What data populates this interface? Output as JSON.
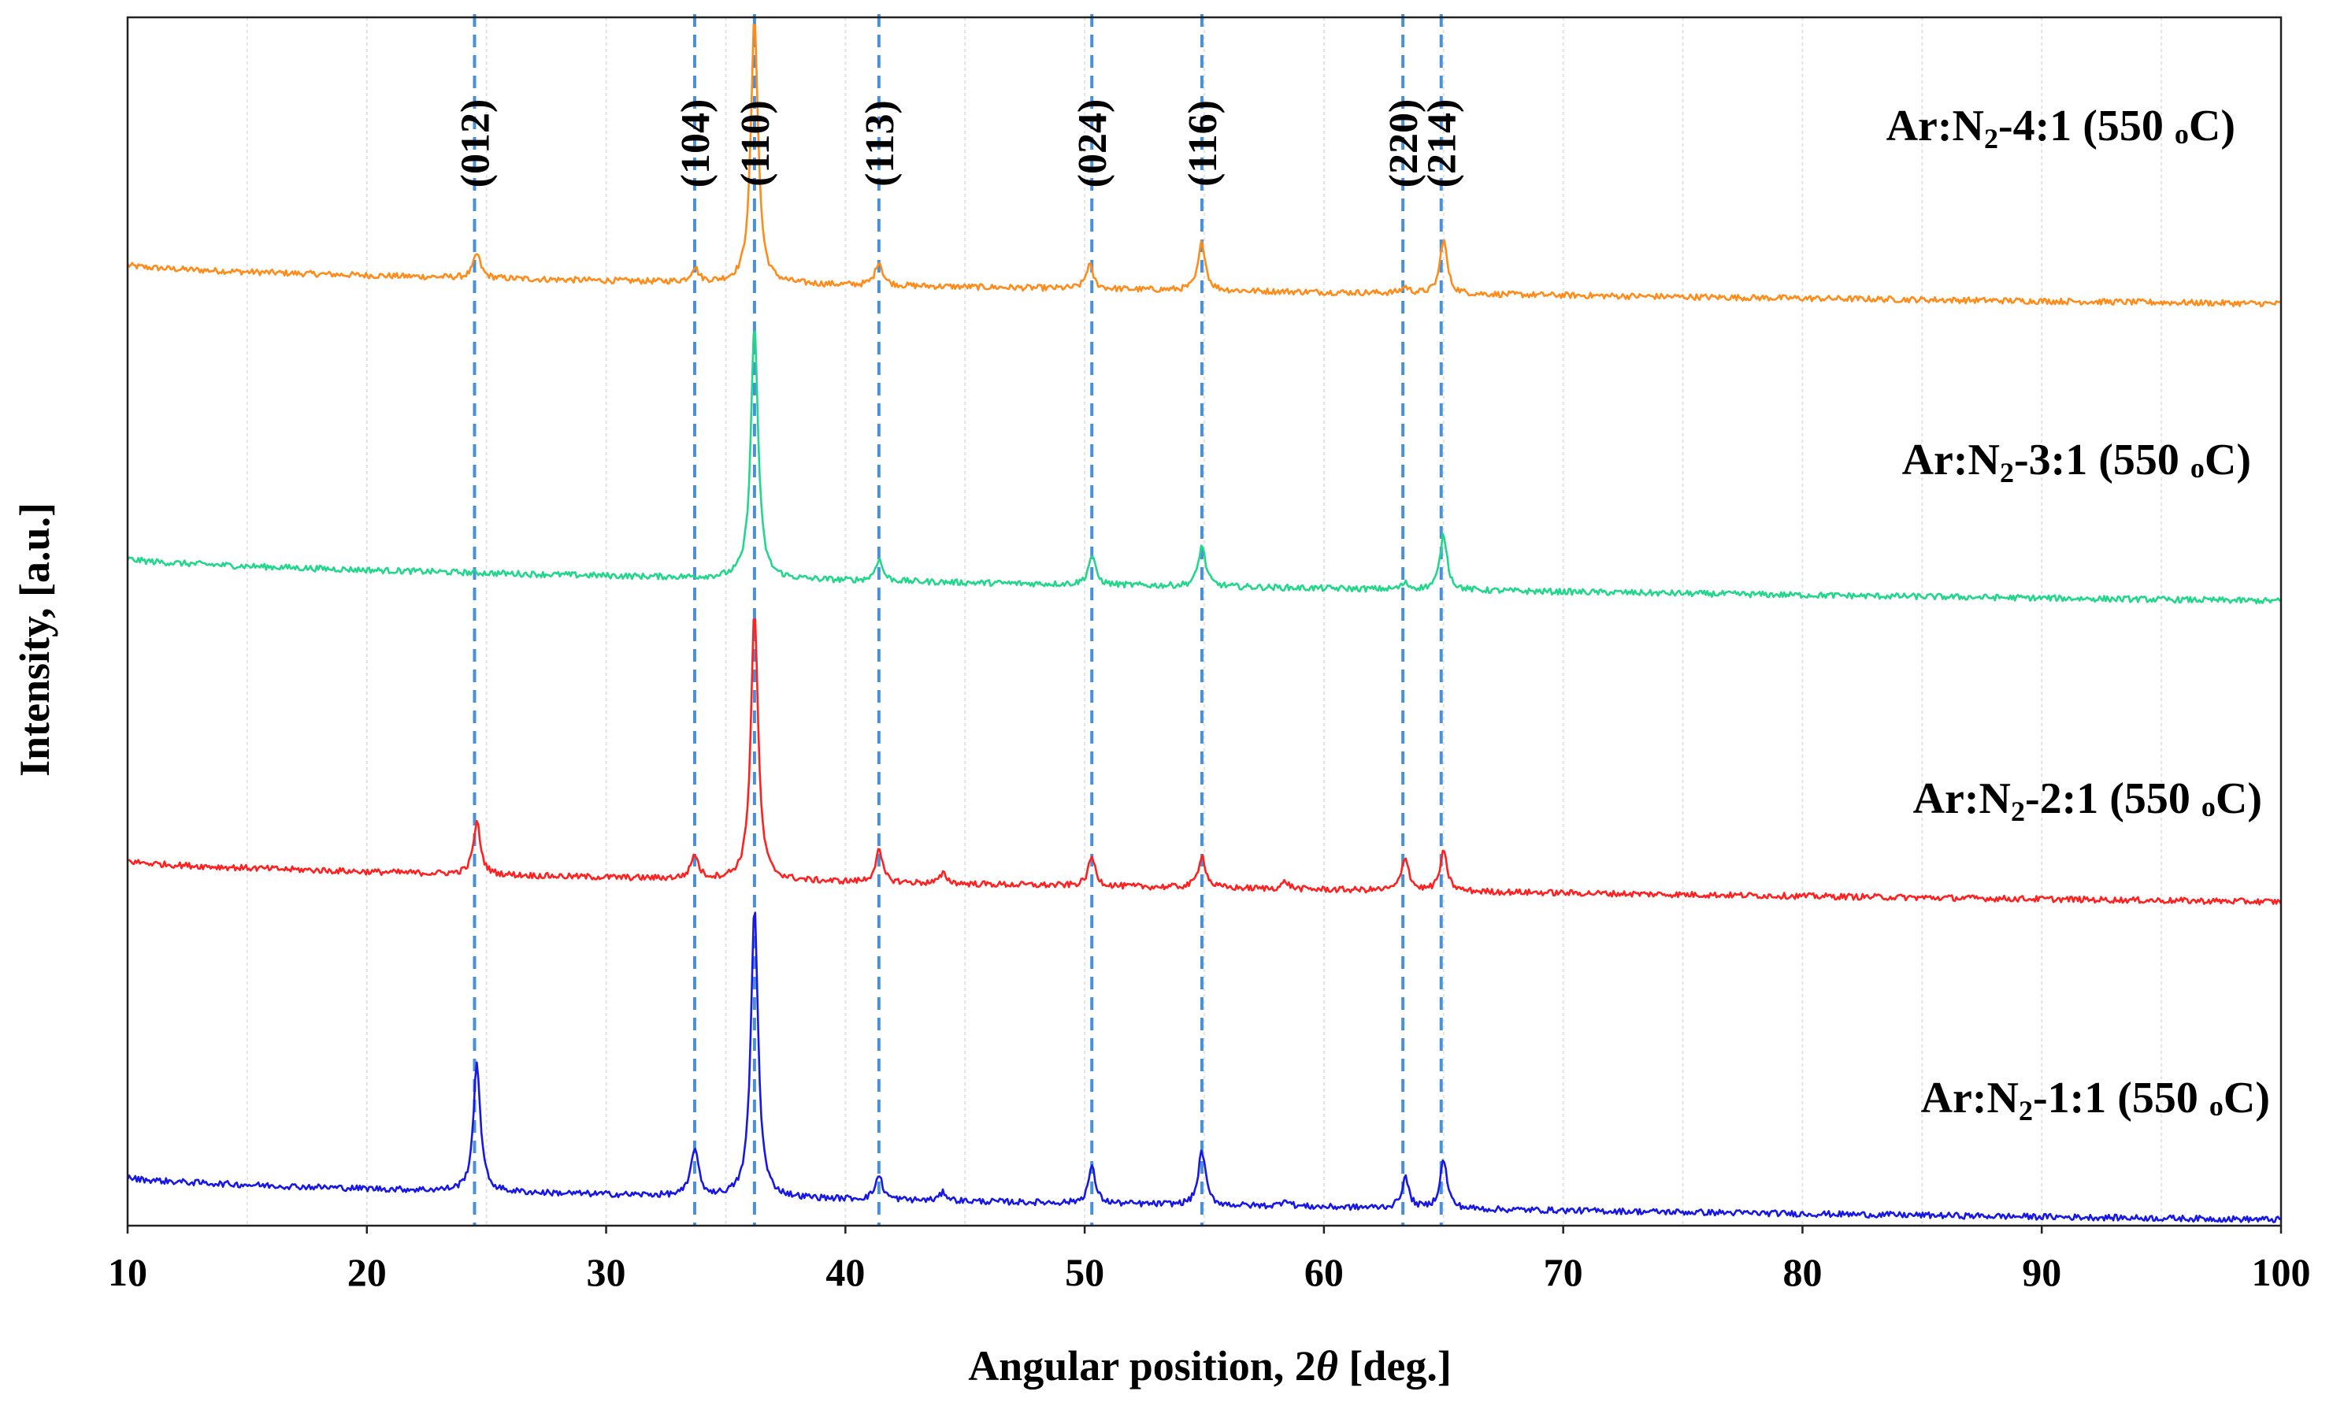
{
  "chart_data": {
    "type": "line",
    "title": "",
    "xlabel_prefix": "Angular position, 2",
    "xlabel_symbol": "θ",
    "xlabel_suffix": " [deg.]",
    "ylabel": "Intensity, [a.u.]",
    "xlim": [
      10,
      100
    ],
    "x_ticks": [
      10,
      20,
      30,
      40,
      50,
      60,
      70,
      80,
      90,
      100
    ],
    "y_ticks_visible": false,
    "grid": "vertical-minor",
    "legend": "inline-right",
    "y_range": [
      0,
      100
    ],
    "peak_markers": [
      {
        "label": "(012)",
        "x": 24.5
      },
      {
        "label": "(104)",
        "x": 33.7
      },
      {
        "label": "(110)",
        "x": 36.2
      },
      {
        "label": "(113)",
        "x": 41.4
      },
      {
        "label": "(024)",
        "x": 50.3
      },
      {
        "label": "(116)",
        "x": 54.9
      },
      {
        "label": "(220)",
        "x": 63.3
      },
      {
        "label": "(214)",
        "x": 64.9
      }
    ],
    "series": [
      {
        "name": "Ar:N2-4:1 (550 oC)",
        "label_parts": [
          "Ar:N",
          "2",
          "-4:1 (550 ",
          "o",
          "C)"
        ],
        "color": "#ff8c1a",
        "baseline_start": 79.5,
        "baseline_end": 76.3,
        "peaks": [
          {
            "x": 24.6,
            "height": 2.0
          },
          {
            "x": 33.7,
            "height": 1.2
          },
          {
            "x": 36.2,
            "height": 22.0
          },
          {
            "x": 41.4,
            "height": 2.0
          },
          {
            "x": 50.2,
            "height": 2.0
          },
          {
            "x": 54.9,
            "height": 4.0
          },
          {
            "x": 63.4,
            "height": 0.5
          },
          {
            "x": 65.0,
            "height": 4.5
          }
        ]
      },
      {
        "name": "Ar:N2-3:1 (550 oC)",
        "label_parts": [
          "Ar:N",
          "2",
          "-3:1 (550 ",
          "o",
          "C)"
        ],
        "color": "#22d68c",
        "baseline_start": 55.2,
        "baseline_end": 51.7,
        "peaks": [
          {
            "x": 36.2,
            "height": 21.0
          },
          {
            "x": 41.4,
            "height": 1.8
          },
          {
            "x": 50.3,
            "height": 2.4
          },
          {
            "x": 54.9,
            "height": 3.4
          },
          {
            "x": 63.4,
            "height": 0.5
          },
          {
            "x": 65.0,
            "height": 4.6
          }
        ]
      },
      {
        "name": "Ar:N2-2:1 (550 oC)",
        "label_parts": [
          "Ar:N",
          "2",
          "-2:1 (550 ",
          "o",
          "C)"
        ],
        "color": "#ff2020",
        "baseline_start": 30.2,
        "baseline_end": 26.8,
        "peaks": [
          {
            "x": 24.6,
            "height": 4.3
          },
          {
            "x": 33.7,
            "height": 2.0
          },
          {
            "x": 36.2,
            "height": 22.3
          },
          {
            "x": 41.4,
            "height": 2.6
          },
          {
            "x": 44.1,
            "height": 0.8
          },
          {
            "x": 50.3,
            "height": 2.4
          },
          {
            "x": 54.9,
            "height": 2.7
          },
          {
            "x": 58.4,
            "height": 0.6
          },
          {
            "x": 63.4,
            "height": 2.8
          },
          {
            "x": 65.0,
            "height": 3.2
          }
        ]
      },
      {
        "name": "Ar:N2-1:1 (550 oC)",
        "label_parts": [
          "Ar:N",
          "2",
          "-1:1 (550 ",
          "o",
          "C)"
        ],
        "color": "#1818e6",
        "baseline_start": 4.0,
        "baseline_end": 0.5,
        "peaks": [
          {
            "x": 24.6,
            "height": 10.5
          },
          {
            "x": 33.7,
            "height": 4.0
          },
          {
            "x": 36.2,
            "height": 24.0
          },
          {
            "x": 41.4,
            "height": 2.0
          },
          {
            "x": 44.1,
            "height": 0.7
          },
          {
            "x": 50.3,
            "height": 3.0
          },
          {
            "x": 54.9,
            "height": 4.5
          },
          {
            "x": 58.4,
            "height": 0.6
          },
          {
            "x": 63.4,
            "height": 2.5
          },
          {
            "x": 65.0,
            "height": 4.0
          }
        ]
      }
    ]
  }
}
